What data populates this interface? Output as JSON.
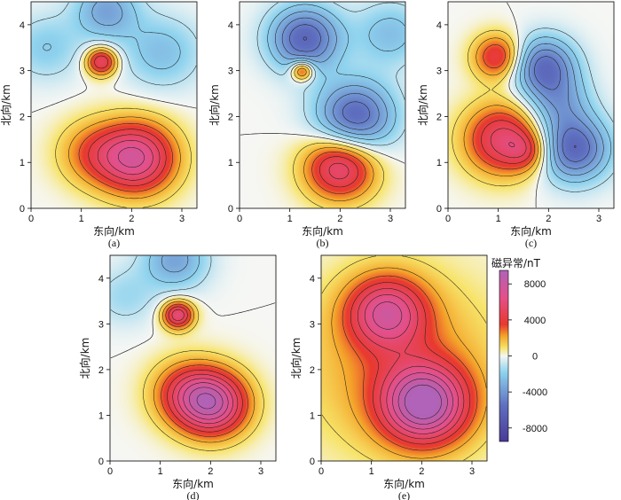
{
  "figure": {
    "colorbar": {
      "title": "磁异常/nT",
      "ticks": [
        8000,
        4000,
        0,
        -4000,
        -8000
      ],
      "tick_labels": [
        "8000",
        "4000",
        "0",
        "-4000",
        "-8000"
      ],
      "range": [
        -9500,
        9500
      ]
    },
    "colors": {
      "deep_negative": "#4a3a97",
      "negative": "#5f6fc0",
      "light_negative": "#8fd3ee",
      "zero": "#f6f7f4",
      "light_positive": "#f7e46a",
      "positive": "#f4a52a",
      "red": "#e8392f",
      "pink": "#e4508a",
      "high": "#b063b8"
    }
  },
  "chart_data": [
    {
      "type": "heatmap",
      "panel": "(a)",
      "xlabel": "东向/km",
      "ylabel": "北向/km",
      "xlim": [
        0,
        3.3
      ],
      "ylim": [
        0,
        4.5
      ],
      "xticks": [
        0,
        1,
        2,
        3
      ],
      "yticks": [
        0,
        1,
        2,
        3,
        4
      ],
      "sources": [
        {
          "x": 1.4,
          "y": 3.2,
          "amplitude": 5500,
          "sigma": 0.22
        },
        {
          "x": 2.1,
          "y": 1.1,
          "amplitude": 7000,
          "sigma": 0.55
        },
        {
          "x": 1.2,
          "y": 1.2,
          "amplitude": 2500,
          "sigma": 0.5
        },
        {
          "x": 1.5,
          "y": 4.3,
          "amplitude": -3500,
          "sigma": 0.45
        },
        {
          "x": 2.6,
          "y": 3.4,
          "amplitude": -2500,
          "sigma": 0.55
        },
        {
          "x": 0.3,
          "y": 3.5,
          "amplitude": -2000,
          "sigma": 0.5
        }
      ]
    },
    {
      "type": "heatmap",
      "panel": "(b)",
      "xlabel": "东向/km",
      "ylabel": "北向/km",
      "xlim": [
        0,
        3.3
      ],
      "ylim": [
        0,
        4.5
      ],
      "xticks": [
        0,
        1,
        2,
        3
      ],
      "yticks": [
        0,
        1,
        2,
        3,
        4
      ],
      "sources": [
        {
          "x": 1.25,
          "y": 3.0,
          "amplitude": 5000,
          "sigma": 0.16
        },
        {
          "x": 2.0,
          "y": 0.9,
          "amplitude": 6000,
          "sigma": 0.5
        },
        {
          "x": 1.3,
          "y": 3.7,
          "amplitude": -6000,
          "sigma": 0.5
        },
        {
          "x": 2.3,
          "y": 2.0,
          "amplitude": -6000,
          "sigma": 0.55
        },
        {
          "x": 3.0,
          "y": 3.8,
          "amplitude": -2500,
          "sigma": 0.5
        }
      ]
    },
    {
      "type": "heatmap",
      "panel": "(c)",
      "xlabel": "东向/km",
      "ylabel": "北向/km",
      "xlim": [
        0,
        3.3
      ],
      "ylim": [
        0,
        4.5
      ],
      "xticks": [
        0,
        1,
        2,
        3
      ],
      "yticks": [
        0,
        1,
        2,
        3,
        4
      ],
      "sources": [
        {
          "x": 1.0,
          "y": 3.3,
          "amplitude": 4500,
          "sigma": 0.35
        },
        {
          "x": 1.1,
          "y": 1.5,
          "amplitude": 5500,
          "sigma": 0.55
        },
        {
          "x": 1.6,
          "y": 1.25,
          "amplitude": 2500,
          "sigma": 0.3
        },
        {
          "x": 2.5,
          "y": 1.3,
          "amplitude": -6000,
          "sigma": 0.5
        },
        {
          "x": 1.9,
          "y": 3.1,
          "amplitude": -5500,
          "sigma": 0.45
        },
        {
          "x": 2.2,
          "y": 2.3,
          "amplitude": -3000,
          "sigma": 0.45
        }
      ]
    },
    {
      "type": "heatmap",
      "panel": "(d)",
      "xlabel": "东向/km",
      "ylabel": "北向/km",
      "xlim": [
        0,
        3.3
      ],
      "ylim": [
        0,
        4.5
      ],
      "xticks": [
        0,
        1,
        2,
        3
      ],
      "yticks": [
        0,
        1,
        2,
        3,
        4
      ],
      "sources": [
        {
          "x": 1.35,
          "y": 3.2,
          "amplitude": 6000,
          "sigma": 0.22
        },
        {
          "x": 2.05,
          "y": 1.25,
          "amplitude": 7500,
          "sigma": 0.5
        },
        {
          "x": 1.5,
          "y": 1.5,
          "amplitude": 3500,
          "sigma": 0.5
        },
        {
          "x": 1.3,
          "y": 4.4,
          "amplitude": -3500,
          "sigma": 0.45
        },
        {
          "x": 0.3,
          "y": 3.6,
          "amplitude": -1500,
          "sigma": 0.45
        }
      ]
    },
    {
      "type": "heatmap",
      "panel": "(e)",
      "xlabel": "东向/km",
      "ylabel": "北向/km",
      "xlim": [
        0,
        3.3
      ],
      "ylim": [
        0,
        4.5
      ],
      "xticks": [
        0,
        1,
        2,
        3
      ],
      "yticks": [
        0,
        1,
        2,
        3,
        4
      ],
      "sources": [
        {
          "x": 1.3,
          "y": 3.25,
          "amplitude": 6000,
          "sigma": 0.55
        },
        {
          "x": 2.05,
          "y": 1.25,
          "amplitude": 8500,
          "sigma": 0.6
        },
        {
          "x": 1.6,
          "y": 2.1,
          "amplitude": 2500,
          "sigma": 1.4
        }
      ]
    }
  ]
}
